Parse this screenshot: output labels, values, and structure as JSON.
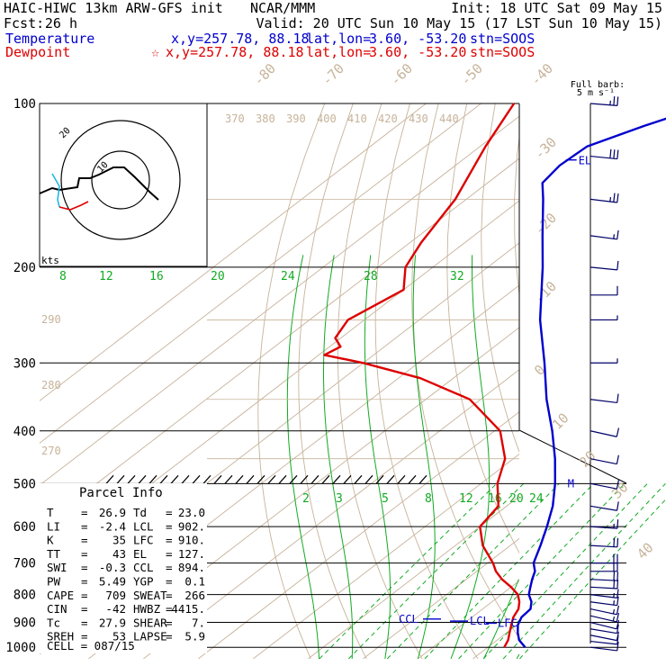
{
  "header": {
    "model": "HAIC-HIWC 13km ARW-GFS init",
    "org": "NCAR/MMM",
    "init": "Init: 18 UTC Sat 09 May 15",
    "fcst_label": "Fcst:",
    "fcst_value": "26 h",
    "valid": "Valid: 20 UTC Sun 10 May 15 (17 LST Sun 10 May 15)",
    "temperature": {
      "label": "Temperature",
      "xy": "x,y=257.78, 88.18",
      "latlon_label": "lat,lon=",
      "latlon_value": "3.60, -53.20",
      "stn": "stn=SOOS",
      "color": "#0000cc"
    },
    "dewpoint": {
      "label": "Dewpoint",
      "marker": "☆",
      "xy": "x,y=257.78, 88.18",
      "latlon_label": "lat,lon=",
      "latlon_value": "3.60, -53.20",
      "stn": "stn=SOOS",
      "color": "#dd0000"
    }
  },
  "barb_legend": {
    "line1": "Full barb:",
    "line2": "5 m s⁻¹"
  },
  "hodograph": {
    "ring_labels": [
      "10",
      "20"
    ],
    "units": "kts"
  },
  "parcel_info": {
    "title": "Parcel Info",
    "rows": [
      {
        "k1": "T",
        "v1": "26.9",
        "k2": "Td",
        "v2": "23.0"
      },
      {
        "k1": "LI",
        "v1": "-2.4",
        "k2": "LCL",
        "v2": "902."
      },
      {
        "k1": "K",
        "v1": "35",
        "k2": "LFC",
        "v2": "910."
      },
      {
        "k1": "TT",
        "v1": "43",
        "k2": "EL",
        "v2": "127."
      },
      {
        "k1": "SWI",
        "v1": "-0.3",
        "k2": "CCL",
        "v2": "894."
      },
      {
        "k1": "PW",
        "v1": "5.49",
        "k2": "YGP",
        "v2": "0.1"
      },
      {
        "k1": "CAPE",
        "v1": "709",
        "k2": "SWEAT",
        "v2": "266"
      },
      {
        "k1": "CIN",
        "v1": "-42",
        "k2": "HWBZ",
        "v2": "4415."
      },
      {
        "k1": "Tc",
        "v1": "27.9",
        "k2": "SHEAR",
        "v2": "7."
      },
      {
        "k1": "SREH",
        "v1": "53",
        "k2": "LAPSE",
        "v2": "5.9"
      }
    ],
    "cell": "CELL = 087/15"
  },
  "chart_data": {
    "type": "skew-t",
    "pressure_axis": {
      "log_scale": true,
      "ylim": [
        1000,
        100
      ],
      "ticks": [
        100,
        200,
        300,
        400,
        500,
        600,
        700,
        800,
        900,
        1000
      ]
    },
    "isotherm_labels": [
      "-80",
      "-70",
      "-60",
      "-50",
      "-40",
      "-30",
      "-20",
      "-10",
      "0",
      "10",
      "20",
      "30",
      "40"
    ],
    "theta_labels_top": [
      "370",
      "380",
      "390",
      "400",
      "410",
      "420",
      "430",
      "440"
    ],
    "theta_labels_left": [
      "290",
      "280",
      "270"
    ],
    "theta_e_labels": [
      "8",
      "12",
      "16",
      "20",
      "24",
      "28",
      "32"
    ],
    "mixing_ratio_labels": [
      "2",
      "3",
      "5",
      "8",
      "12",
      "16",
      "20",
      "24"
    ],
    "level_labels": {
      "el": "EL",
      "ccl": "CCL",
      "lcl": "LCL",
      "lfc": "LFC",
      "m": "M"
    },
    "series": [
      {
        "name": "Temperature",
        "color": "#0000cc",
        "p": [
          1000,
          970,
          940,
          910,
          880,
          850,
          825,
          800,
          775,
          750,
          725,
          700,
          650,
          600,
          550,
          500,
          450,
          400,
          350,
          300,
          250,
          200,
          175,
          150,
          140,
          130,
          120,
          110,
          100
        ],
        "t": [
          26.8,
          24.0,
          22.0,
          20.2,
          19.0,
          18.7,
          17.2,
          15.0,
          13.5,
          12.0,
          10.6,
          8.4,
          5.5,
          2.2,
          -1.6,
          -6.5,
          -12.4,
          -19.5,
          -28.0,
          -37.0,
          -48.0,
          -60.0,
          -67.5,
          -76.0,
          -80.0,
          -81.0,
          -80.5,
          -75.0,
          -68.0
        ]
      },
      {
        "name": "Dewpoint",
        "color": "#dd0000",
        "p": [
          1000,
          970,
          940,
          910,
          880,
          850,
          825,
          800,
          775,
          750,
          725,
          700,
          650,
          600,
          550,
          500,
          450,
          400,
          350,
          320,
          300,
          290,
          280,
          270,
          250,
          220,
          200,
          180,
          150,
          120,
          100
        ],
        "t": [
          23.0,
          22.0,
          20.5,
          19.0,
          17.5,
          16.5,
          15.0,
          13.0,
          10.0,
          6.5,
          3.5,
          1.0,
          -5.0,
          -10.0,
          -11.5,
          -17.0,
          -21.5,
          -29.0,
          -42.0,
          -56.0,
          -70.0,
          -79.0,
          -78.0,
          -81.0,
          -83.0,
          -80.0,
          -85.0,
          -88.0,
          -92.0,
          -99.0,
          -104.0
        ]
      }
    ],
    "wind_barbs": {
      "p": [
        1000,
        975,
        950,
        925,
        900,
        875,
        850,
        825,
        800,
        775,
        750,
        725,
        700,
        650,
        600,
        550,
        500,
        450,
        400,
        350,
        300,
        250,
        225,
        200,
        175,
        150,
        125,
        100
      ],
      "u_kt": [
        -8,
        -9,
        -10,
        -12,
        -12,
        -13,
        -14,
        -15,
        -16,
        -18,
        -20,
        -22,
        -20,
        -18,
        -15,
        -12,
        -10,
        -10,
        -9,
        -8,
        -6,
        -6,
        -8,
        -10,
        -15,
        -25,
        -30,
        -25
      ],
      "v_kt": [
        1,
        1,
        2,
        2,
        3,
        3,
        3,
        2,
        2,
        1,
        1,
        0,
        0,
        1,
        1,
        2,
        2,
        2,
        2,
        1,
        0,
        0,
        0,
        1,
        2,
        3,
        3,
        2
      ]
    }
  }
}
